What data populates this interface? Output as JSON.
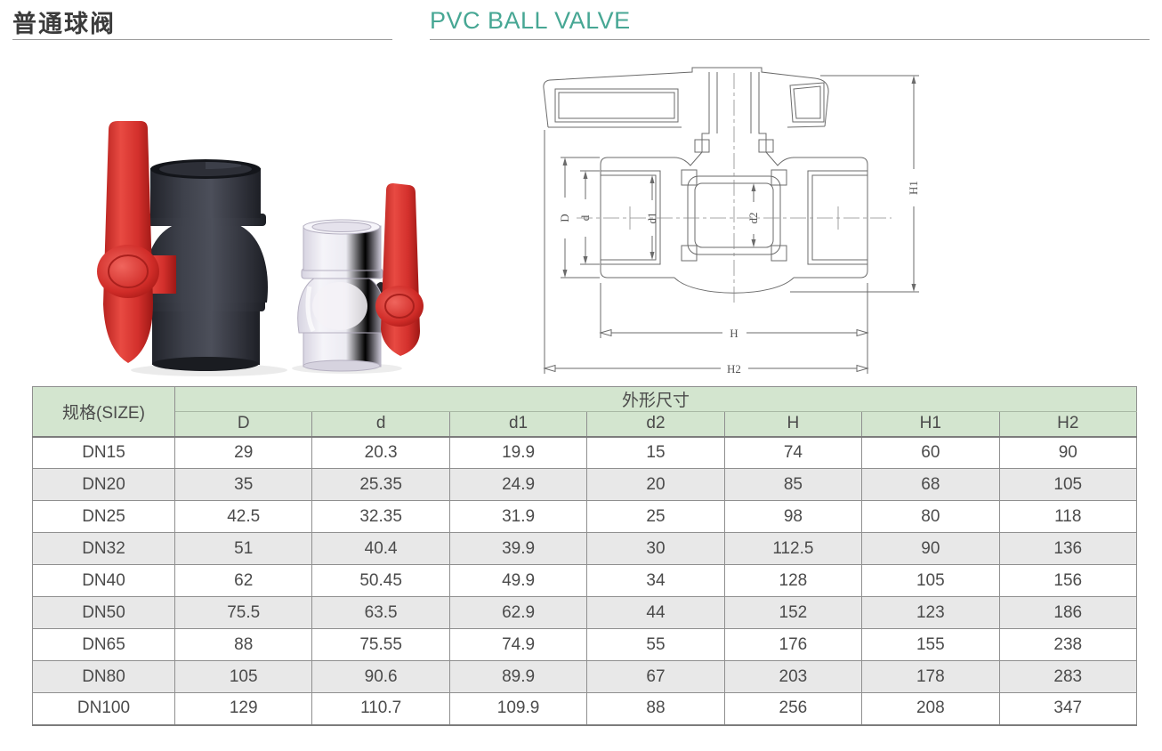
{
  "header": {
    "title_zh": "普通球阀",
    "title_en": "PVC BALL VALVE"
  },
  "drawing": {
    "labels": {
      "D": "D",
      "d": "d",
      "d1": "d1",
      "d2": "d2",
      "H": "H",
      "H1": "H1",
      "H2": "H2"
    }
  },
  "table": {
    "size_header": "规格(SIZE)",
    "group_header": "外形尺寸",
    "columns": [
      "D",
      "d",
      "d1",
      "d2",
      "H",
      "H1",
      "H2"
    ],
    "rows": [
      {
        "size": "DN15",
        "values": [
          "29",
          "20.3",
          "19.9",
          "15",
          "74",
          "60",
          "90"
        ]
      },
      {
        "size": "DN20",
        "values": [
          "35",
          "25.35",
          "24.9",
          "20",
          "85",
          "68",
          "105"
        ]
      },
      {
        "size": "DN25",
        "values": [
          "42.5",
          "32.35",
          "31.9",
          "25",
          "98",
          "80",
          "118"
        ]
      },
      {
        "size": "DN32",
        "values": [
          "51",
          "40.4",
          "39.9",
          "30",
          "112.5",
          "90",
          "136"
        ]
      },
      {
        "size": "DN40",
        "values": [
          "62",
          "50.45",
          "49.9",
          "34",
          "128",
          "105",
          "156"
        ]
      },
      {
        "size": "DN50",
        "values": [
          "75.5",
          "63.5",
          "62.9",
          "44",
          "152",
          "123",
          "186"
        ]
      },
      {
        "size": "DN65",
        "values": [
          "88",
          "75.55",
          "74.9",
          "55",
          "176",
          "155",
          "238"
        ]
      },
      {
        "size": "DN80",
        "values": [
          "105",
          "90.6",
          "89.9",
          "67",
          "203",
          "178",
          "283"
        ]
      },
      {
        "size": "DN100",
        "values": [
          "129",
          "110.7",
          "109.9",
          "88",
          "256",
          "208",
          "347"
        ]
      }
    ]
  },
  "colors": {
    "accent_teal": "#47a794",
    "table_header_green": "#d3e5cf",
    "row_alt_gray": "#e8e8e8",
    "handle_red": "#d02c28",
    "valve_dark_body": "#35373f",
    "drawing_line": "#6b6b6b"
  }
}
